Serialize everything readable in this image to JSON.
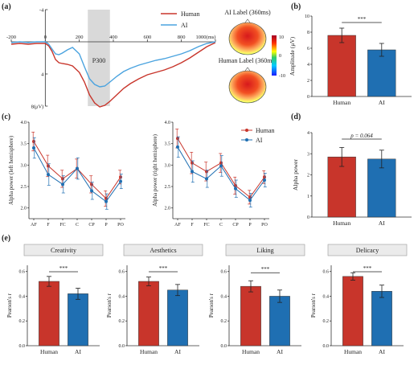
{
  "colors": {
    "human": "#c8352b",
    "ai": "#1f6fb2",
    "ai_light": "#4aa3df",
    "shade": "#d9d9d9",
    "strip": "#ebebeb",
    "axis": "#333333"
  },
  "labels": {
    "a": "(a)",
    "b": "(b)",
    "c": "(c)",
    "d": "(d)",
    "e": "(e)"
  },
  "chart_data": [
    {
      "id": "a",
      "type": "line",
      "x_ticks": [
        "-200",
        "0",
        "200",
        "400",
        "600",
        "800",
        "1000(ms)"
      ],
      "y_ticks": [
        "-4",
        "0",
        "4",
        "8(μV)"
      ],
      "xlim": [
        -200,
        1000
      ],
      "ylim": [
        -4,
        8
      ],
      "y_inverted": true,
      "shaded_window": [
        250,
        380
      ],
      "annotation": "P300",
      "series": [
        {
          "name": "Human",
          "color": "human",
          "x": [
            -200,
            -150,
            -100,
            -50,
            0,
            20,
            40,
            60,
            80,
            100,
            130,
            160,
            200,
            230,
            260,
            290,
            320,
            350,
            380,
            420,
            460,
            500,
            550,
            600,
            650,
            700,
            750,
            800,
            850,
            900,
            950,
            1000
          ],
          "y": [
            0.3,
            0.2,
            0.3,
            0.2,
            0.2,
            0.5,
            1.2,
            2.2,
            2.6,
            2.7,
            2.8,
            3.0,
            3.8,
            5.0,
            6.6,
            7.6,
            8.1,
            7.9,
            7.4,
            6.6,
            5.8,
            5.2,
            4.6,
            4.1,
            3.8,
            3.5,
            3.1,
            2.6,
            2.0,
            1.3,
            0.6,
            0.1
          ]
        },
        {
          "name": "AI",
          "color": "ai_light",
          "x": [
            -200,
            -150,
            -100,
            -50,
            0,
            20,
            40,
            60,
            80,
            100,
            130,
            160,
            200,
            230,
            260,
            290,
            320,
            350,
            380,
            420,
            460,
            500,
            550,
            600,
            650,
            700,
            750,
            800,
            850,
            900,
            950,
            1000
          ],
          "y": [
            0.1,
            0.0,
            0.1,
            0.0,
            0.0,
            0.3,
            0.9,
            1.5,
            1.6,
            1.4,
            1.0,
            0.7,
            1.5,
            3.1,
            4.6,
            5.3,
            5.6,
            5.5,
            5.0,
            4.3,
            3.7,
            3.3,
            2.9,
            2.6,
            2.3,
            2.1,
            1.8,
            1.5,
            1.1,
            0.6,
            0.2,
            0.0
          ]
        }
      ],
      "topomaps": [
        {
          "title": "AI Label (360ms)"
        },
        {
          "title": "Human Label (360ms)"
        }
      ],
      "colorbar": {
        "max": "10",
        "mid": "0",
        "min": "-10"
      }
    },
    {
      "id": "b",
      "type": "bar",
      "categories": [
        "Human",
        "AI"
      ],
      "values": [
        7.6,
        5.8
      ],
      "errors": [
        0.9,
        0.8
      ],
      "ylabel": "Amplitude (μV)",
      "ylim": [
        0,
        10
      ],
      "y_ticks": [
        "0",
        "2",
        "4",
        "6",
        "8",
        "10"
      ],
      "significance": "***"
    },
    {
      "id": "c_left",
      "type": "line",
      "categories": [
        "AF",
        "F",
        "FC",
        "C",
        "CP",
        "P",
        "PO"
      ],
      "ylabel": "Alpha power (left hemisphere)",
      "ylim": [
        1.75,
        4.0
      ],
      "y_ticks": [
        "2.0",
        "2.5",
        "3.0",
        "3.5",
        "4.0"
      ],
      "series": [
        {
          "name": "Human",
          "color": "human",
          "values": [
            3.55,
            2.98,
            2.68,
            2.92,
            2.55,
            2.22,
            2.72
          ],
          "errors": [
            0.22,
            0.25,
            0.2,
            0.22,
            0.2,
            0.18,
            0.16
          ]
        },
        {
          "name": "AI",
          "color": "ai",
          "values": [
            3.4,
            2.78,
            2.55,
            2.92,
            2.4,
            2.15,
            2.62
          ],
          "errors": [
            0.24,
            0.25,
            0.2,
            0.25,
            0.2,
            0.18,
            0.17
          ]
        }
      ]
    },
    {
      "id": "c_right",
      "type": "line",
      "categories": [
        "AF",
        "F",
        "FC",
        "C",
        "CP",
        "P",
        "PO"
      ],
      "ylabel": "Alpha power (right hemisphere)",
      "ylim": [
        1.75,
        4.0
      ],
      "y_ticks": [
        "2.0",
        "2.5",
        "3.0",
        "3.5",
        "4.0"
      ],
      "series": [
        {
          "name": "Human",
          "color": "human",
          "values": [
            3.62,
            3.05,
            2.85,
            3.05,
            2.52,
            2.25,
            2.72
          ],
          "errors": [
            0.22,
            0.25,
            0.22,
            0.22,
            0.2,
            0.16,
            0.15
          ]
        },
        {
          "name": "AI",
          "color": "ai",
          "values": [
            3.42,
            2.85,
            2.68,
            2.98,
            2.45,
            2.18,
            2.65
          ],
          "errors": [
            0.24,
            0.25,
            0.2,
            0.24,
            0.2,
            0.16,
            0.16
          ]
        }
      ]
    },
    {
      "id": "d",
      "type": "bar",
      "categories": [
        "Human",
        "AI"
      ],
      "values": [
        2.85,
        2.75
      ],
      "errors": [
        0.45,
        0.42
      ],
      "ylabel": "Alpha power",
      "ylim": [
        0,
        4
      ],
      "y_ticks": [
        "0",
        "1",
        "2",
        "3",
        "4"
      ],
      "significance": "p = 0.064"
    },
    {
      "id": "e_creativity",
      "type": "bar",
      "title": "Creativity",
      "categories": [
        "Human",
        "AI"
      ],
      "values": [
        0.52,
        0.42
      ],
      "errors": [
        0.04,
        0.045
      ],
      "ylabel": "Pearson's r",
      "ylim": [
        0,
        0.65
      ],
      "y_ticks": [
        "0.0",
        "0.2",
        "0.4",
        "0.6"
      ],
      "significance": "***"
    },
    {
      "id": "e_aesthetics",
      "type": "bar",
      "title": "Aesthetics",
      "categories": [
        "Human",
        "AI"
      ],
      "values": [
        0.52,
        0.45
      ],
      "errors": [
        0.035,
        0.045
      ],
      "ylabel": "Pearson's r",
      "ylim": [
        0,
        0.65
      ],
      "y_ticks": [
        "0.0",
        "0.2",
        "0.4",
        "0.6"
      ],
      "significance": "***"
    },
    {
      "id": "e_liking",
      "type": "bar",
      "title": "Liking",
      "categories": [
        "Human",
        "AI"
      ],
      "values": [
        0.48,
        0.4
      ],
      "errors": [
        0.045,
        0.05
      ],
      "ylabel": "Pearson's r",
      "ylim": [
        0,
        0.65
      ],
      "y_ticks": [
        "0.0",
        "0.2",
        "0.4",
        "0.6"
      ],
      "significance": "***"
    },
    {
      "id": "e_delicacy",
      "type": "bar",
      "title": "Delicacy",
      "categories": [
        "Human",
        "AI"
      ],
      "values": [
        0.56,
        0.44
      ],
      "errors": [
        0.03,
        0.05
      ],
      "ylabel": "Pearson's r",
      "ylim": [
        0,
        0.65
      ],
      "y_ticks": [
        "0.0",
        "0.2",
        "0.4",
        "0.6"
      ],
      "significance": "***"
    }
  ]
}
